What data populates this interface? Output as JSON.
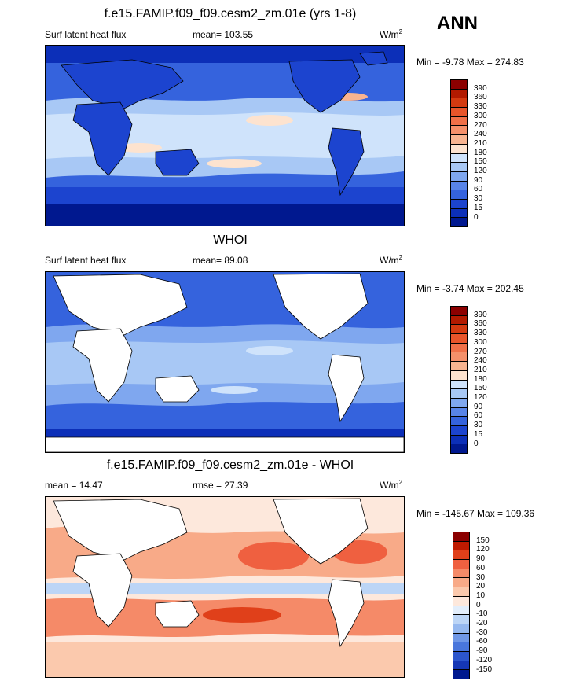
{
  "season": "ANN",
  "panels": [
    {
      "title": "f.e15.FAMIP.f09_f09.cesm2_zm.01e (yrs 1-8)",
      "left_label": "Surf latent heat flux",
      "center_label": "mean= 103.55",
      "units": "W/m",
      "units_sup": "2",
      "minmax": "Min =  -9.78 Max = 274.83",
      "colorbar": {
        "labels": [
          "390",
          "360",
          "330",
          "300",
          "270",
          "240",
          "210",
          "180",
          "150",
          "120",
          "90",
          "60",
          "30",
          "15",
          "0"
        ],
        "colors": [
          "#8b0000",
          "#b21a00",
          "#d43a10",
          "#e8552a",
          "#f07048",
          "#f5906a",
          "#f8b490",
          "#fde3cf",
          "#cfe3fb",
          "#a8c8f5",
          "#7fa7ef",
          "#5884e8",
          "#3563dd",
          "#1c44cf",
          "#0c2fb8",
          "#00188f"
        ]
      }
    },
    {
      "title": "WHOI",
      "left_label": "Surf latent heat flux",
      "center_label": "mean=  89.08",
      "units": "W/m",
      "units_sup": "2",
      "minmax": "Min =  -3.74 Max = 202.45",
      "colorbar": {
        "labels": [
          "390",
          "360",
          "330",
          "300",
          "270",
          "240",
          "210",
          "180",
          "150",
          "120",
          "90",
          "60",
          "30",
          "15",
          "0"
        ],
        "colors": [
          "#8b0000",
          "#b21a00",
          "#d43a10",
          "#e8552a",
          "#f07048",
          "#f5906a",
          "#f8b490",
          "#fde3cf",
          "#cfe3fb",
          "#a8c8f5",
          "#7fa7ef",
          "#5884e8",
          "#3563dd",
          "#1c44cf",
          "#0c2fb8",
          "#00188f"
        ]
      }
    },
    {
      "title": "f.e15.FAMIP.f09_f09.cesm2_zm.01e - WHOI",
      "left_label": "mean =  14.47",
      "center_label": "rmse =  27.39",
      "units": "W/m",
      "units_sup": "2",
      "minmax": "Min = -145.67 Max = 109.36",
      "colorbar": {
        "labels": [
          "150",
          "120",
          "90",
          "60",
          "30",
          "20",
          "10",
          "0",
          "-10",
          "-20",
          "-30",
          "-60",
          "-90",
          "-120",
          "-150"
        ],
        "colors": [
          "#8b0000",
          "#c01a00",
          "#e0401a",
          "#ef6040",
          "#f58a68",
          "#f8aa88",
          "#fbc9ad",
          "#fde8dc",
          "#e3eefb",
          "#bcd5f6",
          "#95b8ef",
          "#6f97e6",
          "#4976dc",
          "#2c56cd",
          "#1537b5",
          "#001a8f"
        ]
      }
    }
  ],
  "map_colors": {
    "panel1": {
      "polar": "#0c2fb8",
      "mid": "#3563dd",
      "tropic": "#a8c8f5",
      "warm": "#fde3cf",
      "hot": "#f8b490",
      "land": "#1c44cf"
    },
    "panel2": {
      "polar": "#0c2fb8",
      "mid": "#3563dd",
      "tropic": "#a8c8f5",
      "warm": "#cfe3fb",
      "land": "#ffffff"
    },
    "panel3": {
      "base": "#fde8dc",
      "pos": "#f58a68",
      "strong": "#e0401a",
      "neg": "#bcd5f6",
      "land": "#ffffff"
    }
  }
}
